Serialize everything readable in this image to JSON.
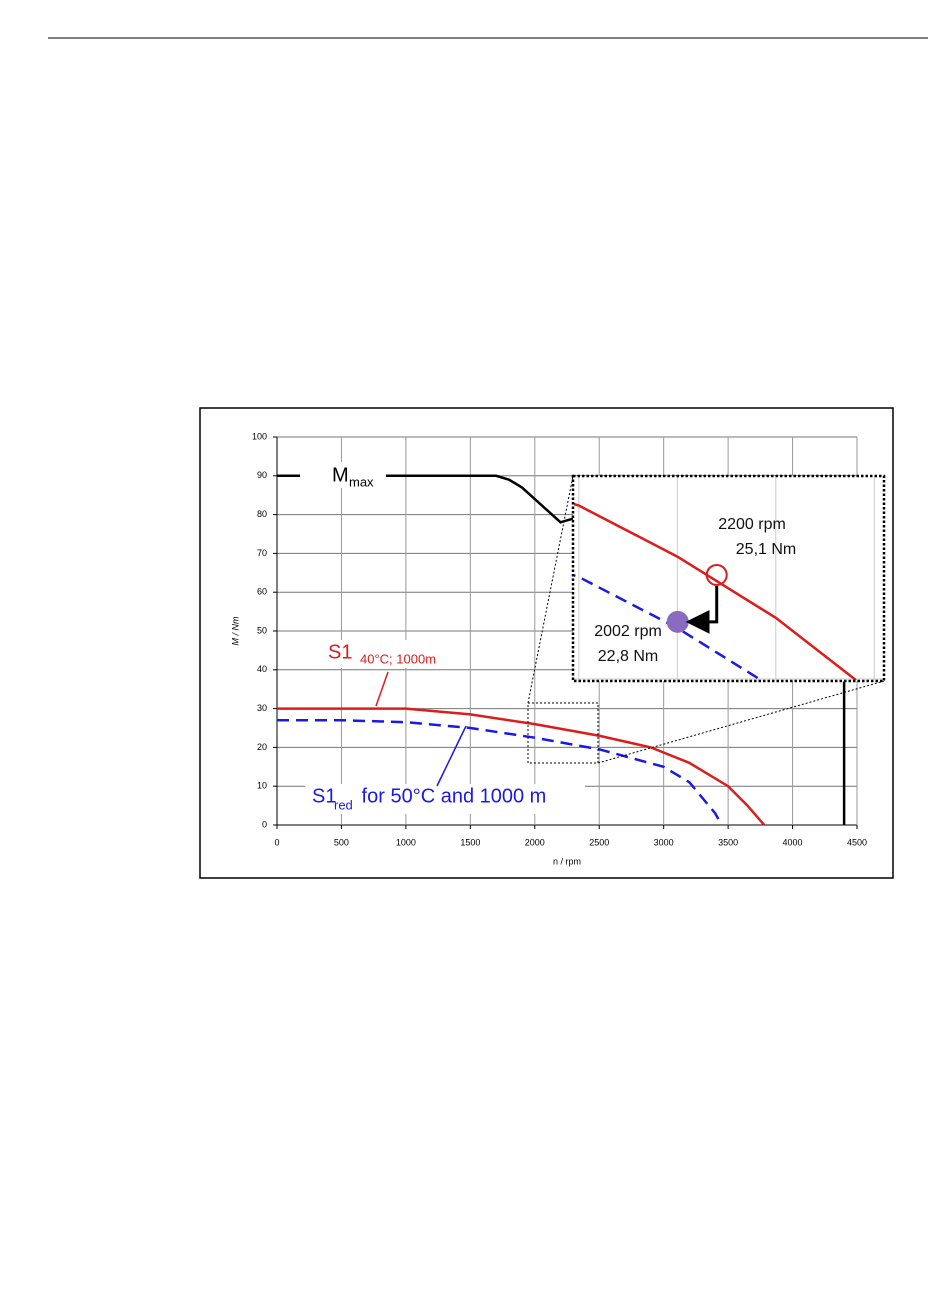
{
  "chart_data": {
    "type": "line",
    "xlabel": "n / rpm",
    "ylabel": "M / Nm",
    "xlim": [
      0,
      4500
    ],
    "ylim": [
      0,
      100
    ],
    "xticks": [
      0,
      500,
      1000,
      1500,
      2000,
      2500,
      3000,
      3500,
      4000,
      4500
    ],
    "yticks": [
      0,
      10,
      20,
      30,
      40,
      50,
      60,
      70,
      80,
      90,
      100
    ],
    "grid": true,
    "series": [
      {
        "label": "M",
        "label_sub": "max",
        "color": "#000000",
        "dash": "solid",
        "x": [
          0,
          1700,
          1800,
          1900,
          2000,
          2100,
          2200,
          2300,
          null,
          4400,
          4400
        ],
        "values": [
          90,
          90,
          89,
          87,
          84,
          81,
          78,
          79,
          null,
          37,
          0
        ]
      },
      {
        "label": "S1",
        "label_sub": "40°C; 1000m",
        "color": "#dd1c1c",
        "dash": "solid",
        "x": [
          0,
          1000,
          1500,
          2000,
          2500,
          2900,
          3200,
          3500,
          3650,
          3780
        ],
        "values": [
          30,
          30,
          28.5,
          26,
          23,
          20,
          16,
          10,
          5,
          0
        ]
      },
      {
        "label": "S1",
        "label_sub": "red",
        "label_suffix": " for 50°C and 1000 m",
        "color": "#1a1ae6",
        "dash": "dashed",
        "x": [
          0,
          500,
          1000,
          1500,
          2000,
          2500,
          3000,
          3200,
          3400,
          3450
        ],
        "values": [
          27,
          27,
          26.5,
          25,
          22.5,
          19.5,
          15,
          11,
          3,
          0
        ]
      }
    ],
    "annotations": [
      {
        "x": 2200,
        "y": 25.1,
        "x_label": "2200 rpm",
        "y_label": "25,1 Nm",
        "marker": "open-circle",
        "color": "#dd1c1c"
      },
      {
        "x": 2002,
        "y": 22.8,
        "x_label": "2002 rpm",
        "y_label": "22,8 Nm",
        "marker": "filled-circle",
        "color": "#8a6bbf"
      }
    ]
  }
}
